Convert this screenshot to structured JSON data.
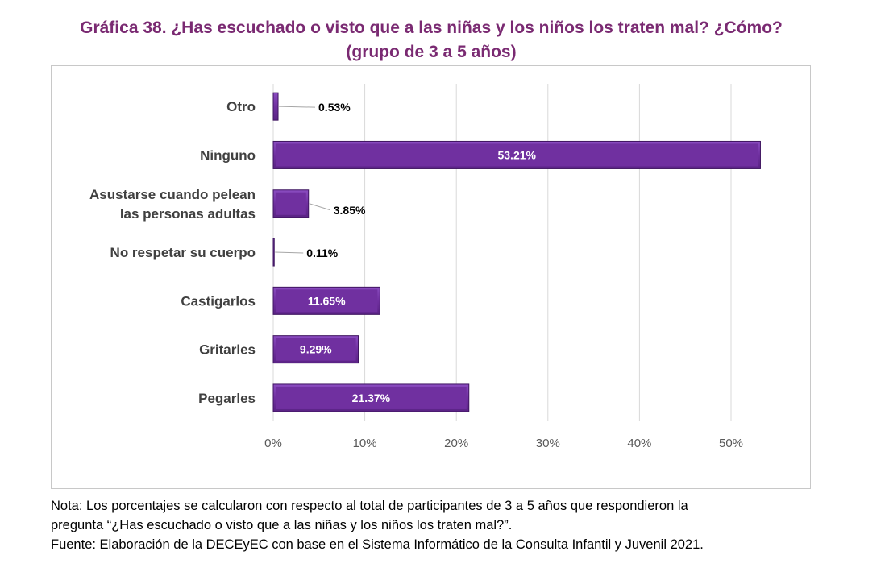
{
  "title_line1": "Gráfica 38. ¿Has escuchado o visto que a las niñas y los niños los traten mal? ¿Cómo?",
  "title_line2": "(grupo de 3 a 5 años)",
  "notes": {
    "line1": "Nota: Los porcentajes se calcularon con respecto al total de participantes de 3 a 5 años que respondieron la",
    "line2": "pregunta “¿Has escuchado o visto que a las niñas y los niños los traten mal?”.",
    "line3": "Fuente: Elaboración de la DECEyEC con base en el Sistema Informático de la Consulta Infantil y Juvenil 2021."
  },
  "colors": {
    "bar": "#7030a0",
    "bar_edge": "#3f1560",
    "title": "#7a2a72"
  },
  "chart_data": {
    "type": "bar",
    "orientation": "horizontal",
    "categories": [
      [
        "Otro"
      ],
      [
        "Ninguno"
      ],
      [
        "Asustarse cuando pelean",
        "las personas adultas"
      ],
      [
        "No respetar su cuerpo"
      ],
      [
        "Castigarlos"
      ],
      [
        "Gritarles"
      ],
      [
        "Pegarles"
      ]
    ],
    "values": [
      0.53,
      53.21,
      3.85,
      0.11,
      11.65,
      9.29,
      21.37
    ],
    "data_labels": [
      "0.53%",
      "53.21%",
      "3.85%",
      "0.11%",
      "11.65%",
      "9.29%",
      "21.37%"
    ],
    "xlim": [
      0,
      55
    ],
    "xticks": [
      0,
      10,
      20,
      30,
      40,
      50
    ],
    "xtick_labels": [
      "0%",
      "10%",
      "20%",
      "30%",
      "40%",
      "50%"
    ],
    "grid": true,
    "legend": "none"
  }
}
